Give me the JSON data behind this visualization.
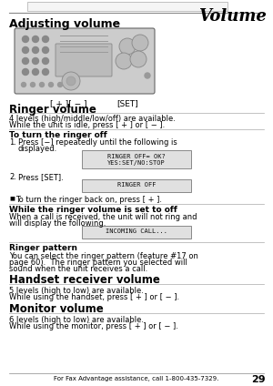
{
  "title": "Volume",
  "page_number": "29",
  "footer_text": "For Fax Advantage assistance, call 1-800-435-7329.",
  "section_title": "Adjusting volume",
  "ringer_volume_title": "Ringer volume",
  "ringer_volume_desc1": "4 levels (high/middle/low/off) are available.",
  "ringer_volume_desc2": "While the unit is idle, press [ + ] or [ − ].",
  "turn_off_title": "To turn the ringer off",
  "step1a": "Press [−] repeatedly until the following is",
  "step1b": "displayed.",
  "display1_line1": "RINGER OFF= OK?",
  "display1_line2": "YES:SET/NO:STOP",
  "step2": "Press [SET].",
  "display2": "RINGER OFF",
  "bullet1": "To turn the ringer back on, press [ + ].",
  "while_off_title": "While the ringer volume is set to off",
  "while_off_desc1": "When a call is received, the unit will not ring and",
  "while_off_desc2": "will display the following.",
  "display3": "INCOMING CALL...",
  "ringer_pattern_title": "Ringer pattern",
  "ringer_pattern_desc1": "You can select the ringer pattern (feature #17 on",
  "ringer_pattern_desc2": "page 60).  The ringer pattern you selected will",
  "ringer_pattern_desc3": "sound when the unit receives a call.",
  "handset_title": "Handset receiver volume",
  "handset_desc1": "5 levels (high to low) are available.",
  "handset_desc2": "While using the handset, press [ + ] or [ − ].",
  "monitor_title": "Monitor volume",
  "monitor_desc1": "6 levels (high to low) are available.",
  "monitor_desc2": "While using the monitor, press [ + ] or [ − ].",
  "bg_color": "#ffffff",
  "text_color": "#000000",
  "display_bg": "#e0e0e0",
  "display_border": "#888888",
  "divider_color": "#aaaaaa",
  "header_line_color": "#888888"
}
